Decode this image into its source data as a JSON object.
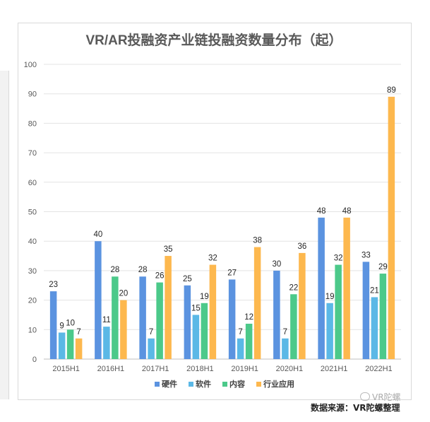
{
  "chart_data": {
    "type": "bar",
    "title": "VR/AR投融资产业链投融资数量分布（起）",
    "categories": [
      "2015H1",
      "2016H1",
      "2017H1",
      "2018H1",
      "2019H1",
      "2020H1",
      "2021H1",
      "2022H1"
    ],
    "series": [
      {
        "name": "硬件",
        "color": "#5b93e0",
        "values": [
          23,
          40,
          28,
          25,
          27,
          30,
          48,
          33
        ]
      },
      {
        "name": "软件",
        "color": "#5bb8e6",
        "values": [
          9,
          11,
          7,
          15,
          7,
          7,
          19,
          21
        ]
      },
      {
        "name": "内容",
        "color": "#4cc98a",
        "values": [
          10,
          28,
          26,
          19,
          12,
          22,
          32,
          29
        ]
      },
      {
        "name": "行业应用",
        "color": "#fdb84e",
        "values": [
          7,
          20,
          35,
          32,
          38,
          36,
          48,
          89
        ]
      }
    ],
    "ylim": [
      0,
      100
    ],
    "yticks": [
      0,
      10,
      20,
      30,
      40,
      50,
      60,
      70,
      80,
      90,
      100
    ],
    "grid": true,
    "legend": "bottom"
  },
  "source_text": "数据来源：VR陀螺整理",
  "watermark_text": "VR陀螺"
}
